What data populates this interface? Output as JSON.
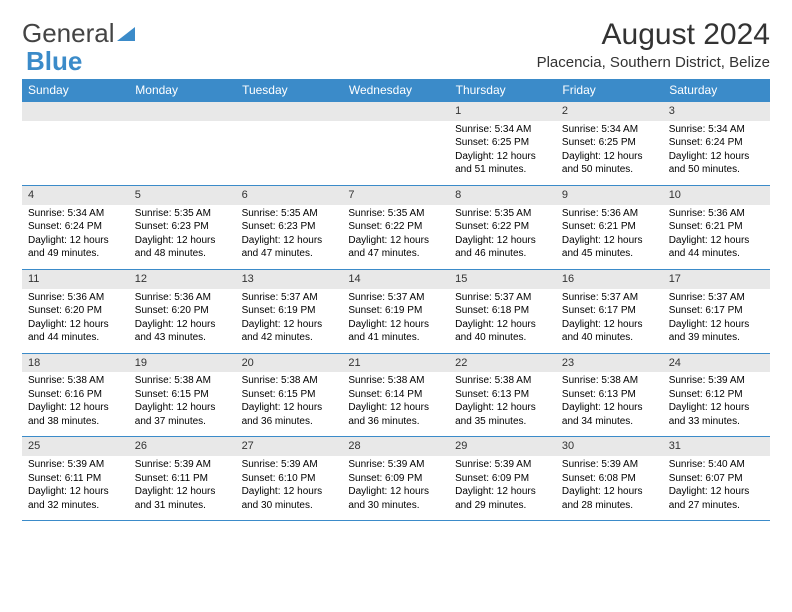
{
  "logo": {
    "text1": "General",
    "text2": "Blue"
  },
  "title": "August 2024",
  "subtitle": "Placencia, Southern District, Belize",
  "colors": {
    "header_bg": "#3b8bc9",
    "header_fg": "#ffffff",
    "daynum_bg": "#e8e8e8",
    "border": "#3b8bc9",
    "page_bg": "#ffffff",
    "text": "#000000",
    "logo_blue": "#3b8bc9",
    "logo_gray": "#444444"
  },
  "typography": {
    "title_fontsize": 30,
    "subtitle_fontsize": 15,
    "th_fontsize": 12,
    "cell_fontsize": 10
  },
  "days_header": [
    "Sunday",
    "Monday",
    "Tuesday",
    "Wednesday",
    "Thursday",
    "Friday",
    "Saturday"
  ],
  "weeks": [
    [
      null,
      null,
      null,
      null,
      {
        "n": "1",
        "sr": "5:34 AM",
        "ss": "6:25 PM",
        "dl": "12 hours and 51 minutes."
      },
      {
        "n": "2",
        "sr": "5:34 AM",
        "ss": "6:25 PM",
        "dl": "12 hours and 50 minutes."
      },
      {
        "n": "3",
        "sr": "5:34 AM",
        "ss": "6:24 PM",
        "dl": "12 hours and 50 minutes."
      }
    ],
    [
      {
        "n": "4",
        "sr": "5:34 AM",
        "ss": "6:24 PM",
        "dl": "12 hours and 49 minutes."
      },
      {
        "n": "5",
        "sr": "5:35 AM",
        "ss": "6:23 PM",
        "dl": "12 hours and 48 minutes."
      },
      {
        "n": "6",
        "sr": "5:35 AM",
        "ss": "6:23 PM",
        "dl": "12 hours and 47 minutes."
      },
      {
        "n": "7",
        "sr": "5:35 AM",
        "ss": "6:22 PM",
        "dl": "12 hours and 47 minutes."
      },
      {
        "n": "8",
        "sr": "5:35 AM",
        "ss": "6:22 PM",
        "dl": "12 hours and 46 minutes."
      },
      {
        "n": "9",
        "sr": "5:36 AM",
        "ss": "6:21 PM",
        "dl": "12 hours and 45 minutes."
      },
      {
        "n": "10",
        "sr": "5:36 AM",
        "ss": "6:21 PM",
        "dl": "12 hours and 44 minutes."
      }
    ],
    [
      {
        "n": "11",
        "sr": "5:36 AM",
        "ss": "6:20 PM",
        "dl": "12 hours and 44 minutes."
      },
      {
        "n": "12",
        "sr": "5:36 AM",
        "ss": "6:20 PM",
        "dl": "12 hours and 43 minutes."
      },
      {
        "n": "13",
        "sr": "5:37 AM",
        "ss": "6:19 PM",
        "dl": "12 hours and 42 minutes."
      },
      {
        "n": "14",
        "sr": "5:37 AM",
        "ss": "6:19 PM",
        "dl": "12 hours and 41 minutes."
      },
      {
        "n": "15",
        "sr": "5:37 AM",
        "ss": "6:18 PM",
        "dl": "12 hours and 40 minutes."
      },
      {
        "n": "16",
        "sr": "5:37 AM",
        "ss": "6:17 PM",
        "dl": "12 hours and 40 minutes."
      },
      {
        "n": "17",
        "sr": "5:37 AM",
        "ss": "6:17 PM",
        "dl": "12 hours and 39 minutes."
      }
    ],
    [
      {
        "n": "18",
        "sr": "5:38 AM",
        "ss": "6:16 PM",
        "dl": "12 hours and 38 minutes."
      },
      {
        "n": "19",
        "sr": "5:38 AM",
        "ss": "6:15 PM",
        "dl": "12 hours and 37 minutes."
      },
      {
        "n": "20",
        "sr": "5:38 AM",
        "ss": "6:15 PM",
        "dl": "12 hours and 36 minutes."
      },
      {
        "n": "21",
        "sr": "5:38 AM",
        "ss": "6:14 PM",
        "dl": "12 hours and 36 minutes."
      },
      {
        "n": "22",
        "sr": "5:38 AM",
        "ss": "6:13 PM",
        "dl": "12 hours and 35 minutes."
      },
      {
        "n": "23",
        "sr": "5:38 AM",
        "ss": "6:13 PM",
        "dl": "12 hours and 34 minutes."
      },
      {
        "n": "24",
        "sr": "5:39 AM",
        "ss": "6:12 PM",
        "dl": "12 hours and 33 minutes."
      }
    ],
    [
      {
        "n": "25",
        "sr": "5:39 AM",
        "ss": "6:11 PM",
        "dl": "12 hours and 32 minutes."
      },
      {
        "n": "26",
        "sr": "5:39 AM",
        "ss": "6:11 PM",
        "dl": "12 hours and 31 minutes."
      },
      {
        "n": "27",
        "sr": "5:39 AM",
        "ss": "6:10 PM",
        "dl": "12 hours and 30 minutes."
      },
      {
        "n": "28",
        "sr": "5:39 AM",
        "ss": "6:09 PM",
        "dl": "12 hours and 30 minutes."
      },
      {
        "n": "29",
        "sr": "5:39 AM",
        "ss": "6:09 PM",
        "dl": "12 hours and 29 minutes."
      },
      {
        "n": "30",
        "sr": "5:39 AM",
        "ss": "6:08 PM",
        "dl": "12 hours and 28 minutes."
      },
      {
        "n": "31",
        "sr": "5:40 AM",
        "ss": "6:07 PM",
        "dl": "12 hours and 27 minutes."
      }
    ]
  ],
  "labels": {
    "sunrise": "Sunrise:",
    "sunset": "Sunset:",
    "daylight": "Daylight:"
  }
}
